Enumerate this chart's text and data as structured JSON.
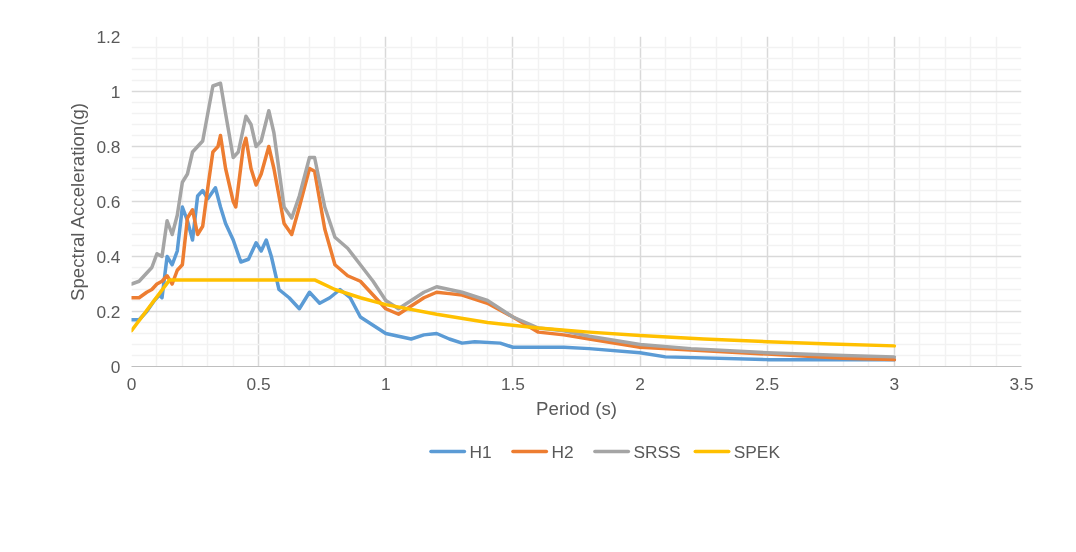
{
  "chart_data": {
    "type": "line",
    "xlabel": "Period (s)",
    "ylabel": "Spectral Acceleration(g)",
    "xlim": [
      0,
      3.5
    ],
    "ylim": [
      0,
      1.2
    ],
    "xticks": [
      0,
      0.5,
      1,
      1.5,
      2,
      2.5,
      3,
      3.5
    ],
    "yticks": [
      0,
      0.2,
      0.4,
      0.6,
      0.8,
      1,
      1.2
    ],
    "grid": true,
    "legend": "bottom",
    "marker": "none",
    "line_style": "solid",
    "series": [
      {
        "name": "H1",
        "color": "#5b9bd5",
        "x": [
          0,
          0.03,
          0.06,
          0.09,
          0.11,
          0.12,
          0.14,
          0.16,
          0.18,
          0.2,
          0.22,
          0.24,
          0.26,
          0.28,
          0.3,
          0.33,
          0.35,
          0.37,
          0.4,
          0.43,
          0.46,
          0.49,
          0.51,
          0.53,
          0.55,
          0.58,
          0.62,
          0.66,
          0.7,
          0.74,
          0.78,
          0.82,
          0.86,
          0.9,
          0.95,
          1.0,
          1.05,
          1.1,
          1.15,
          1.2,
          1.25,
          1.3,
          1.35,
          1.45,
          1.5,
          1.6,
          1.7,
          1.8,
          2.0,
          2.1,
          2.5,
          3.0
        ],
        "values": [
          0.17,
          0.17,
          0.2,
          0.24,
          0.26,
          0.25,
          0.4,
          0.37,
          0.42,
          0.58,
          0.53,
          0.46,
          0.62,
          0.64,
          0.61,
          0.65,
          0.58,
          0.52,
          0.46,
          0.38,
          0.39,
          0.45,
          0.42,
          0.46,
          0.4,
          0.28,
          0.25,
          0.21,
          0.27,
          0.23,
          0.25,
          0.28,
          0.25,
          0.18,
          0.15,
          0.12,
          0.11,
          0.1,
          0.115,
          0.12,
          0.1,
          0.085,
          0.09,
          0.085,
          0.07,
          0.07,
          0.07,
          0.065,
          0.05,
          0.035,
          0.025,
          0.025
        ]
      },
      {
        "name": "H2",
        "color": "#ed7d31",
        "x": [
          0,
          0.03,
          0.06,
          0.08,
          0.1,
          0.12,
          0.14,
          0.16,
          0.18,
          0.2,
          0.22,
          0.24,
          0.26,
          0.28,
          0.3,
          0.32,
          0.34,
          0.35,
          0.37,
          0.4,
          0.41,
          0.44,
          0.45,
          0.47,
          0.49,
          0.51,
          0.54,
          0.56,
          0.6,
          0.63,
          0.66,
          0.7,
          0.72,
          0.76,
          0.8,
          0.85,
          0.9,
          0.95,
          1.0,
          1.05,
          1.1,
          1.15,
          1.2,
          1.25,
          1.3,
          1.4,
          1.5,
          1.6,
          1.7,
          1.8,
          2.0,
          2.2,
          2.5,
          2.8,
          3.0
        ],
        "values": [
          0.25,
          0.25,
          0.27,
          0.28,
          0.3,
          0.31,
          0.33,
          0.3,
          0.35,
          0.37,
          0.54,
          0.57,
          0.48,
          0.51,
          0.65,
          0.78,
          0.8,
          0.84,
          0.72,
          0.6,
          0.58,
          0.8,
          0.83,
          0.72,
          0.66,
          0.7,
          0.8,
          0.72,
          0.52,
          0.48,
          0.58,
          0.72,
          0.71,
          0.5,
          0.37,
          0.33,
          0.31,
          0.26,
          0.21,
          0.19,
          0.22,
          0.25,
          0.27,
          0.265,
          0.26,
          0.23,
          0.18,
          0.125,
          0.115,
          0.1,
          0.07,
          0.06,
          0.045,
          0.03,
          0.025
        ]
      },
      {
        "name": "SRSS",
        "color": "#a5a5a5",
        "x": [
          0,
          0.03,
          0.06,
          0.08,
          0.1,
          0.12,
          0.14,
          0.16,
          0.18,
          0.2,
          0.22,
          0.24,
          0.26,
          0.28,
          0.3,
          0.32,
          0.35,
          0.37,
          0.4,
          0.42,
          0.45,
          0.47,
          0.49,
          0.51,
          0.54,
          0.56,
          0.6,
          0.63,
          0.66,
          0.7,
          0.72,
          0.76,
          0.8,
          0.85,
          0.9,
          0.95,
          1.0,
          1.05,
          1.1,
          1.15,
          1.2,
          1.25,
          1.3,
          1.4,
          1.5,
          1.6,
          1.7,
          1.8,
          2.0,
          2.2,
          2.5,
          2.8,
          3.0
        ],
        "values": [
          0.3,
          0.31,
          0.34,
          0.36,
          0.41,
          0.4,
          0.53,
          0.48,
          0.55,
          0.67,
          0.7,
          0.78,
          0.8,
          0.82,
          0.92,
          1.02,
          1.03,
          0.92,
          0.76,
          0.78,
          0.91,
          0.88,
          0.8,
          0.82,
          0.93,
          0.85,
          0.58,
          0.54,
          0.62,
          0.76,
          0.76,
          0.58,
          0.47,
          0.43,
          0.37,
          0.31,
          0.24,
          0.21,
          0.24,
          0.27,
          0.29,
          0.28,
          0.27,
          0.24,
          0.18,
          0.14,
          0.13,
          0.11,
          0.08,
          0.065,
          0.05,
          0.04,
          0.035
        ]
      },
      {
        "name": "SPEK",
        "color": "#ffc000",
        "x": [
          0,
          0.15,
          0.72,
          0.8,
          0.9,
          1.0,
          1.2,
          1.4,
          1.6,
          1.8,
          2.0,
          2.25,
          2.5,
          2.75,
          3.0
        ],
        "values": [
          0.13,
          0.315,
          0.315,
          0.28,
          0.25,
          0.225,
          0.19,
          0.16,
          0.14,
          0.125,
          0.113,
          0.1,
          0.09,
          0.082,
          0.075
        ]
      }
    ]
  }
}
